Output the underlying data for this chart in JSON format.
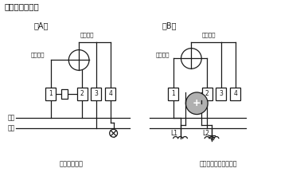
{
  "title": "单相电表接线图",
  "label_A": "（A）",
  "label_B": "（B）",
  "label_voltage_coil": "电压线圈",
  "label_current_coil": "电流线圈",
  "label_fire_wire": "火线",
  "label_zero_wire": "零线",
  "label_direct": "直接接入电表",
  "label_CT": "经电流互感器接入电表",
  "label_L1": "L1",
  "label_L2": "L2",
  "bg_color": "#ffffff",
  "line_color": "#1a1a1a",
  "title_color": "#000000",
  "ct_fill": "#b0b0b0"
}
